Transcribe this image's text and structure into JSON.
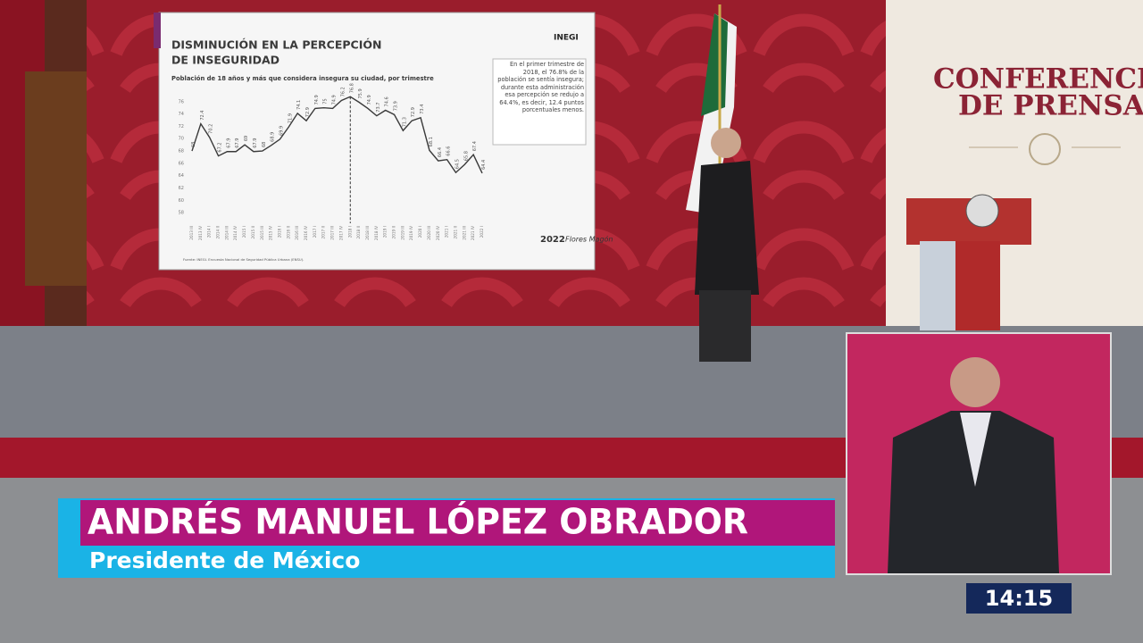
{
  "stage": {
    "backdrop_title": [
      "CONFERENCI",
      "DE PRENSA"
    ]
  },
  "screen": {
    "logo": "INEGI",
    "badge": [
      "2022",
      "Flores Magón"
    ],
    "source": "Fuente: INEGI. Encuesta Nacional de Seguridad Pública Urbana (ENSU).",
    "annotation": "En el primer trimestre de 2018, el 76.8% de la población se sentía insegura; durante esta administración esa percepción se redujo a 64.4%, es decir, 12.4 puntos porcentuales menos.",
    "chart_data": {
      "type": "line",
      "title": [
        "DISMINUCIÓN EN LA PERCEPCIÓN",
        "DE INSEGURIDAD"
      ],
      "subtitle": "Población de 18 años y más que considera insegura su ciudad, por trimestre",
      "categories": [
        "2013 III",
        "2013 IV",
        "2014 I",
        "2014 II",
        "2014 III",
        "2014 IV",
        "2015 I",
        "2015 II",
        "2015 III",
        "2015 IV",
        "2016 I",
        "2016 II",
        "2016 III",
        "2016 IV",
        "2017 I",
        "2017 II",
        "2017 III",
        "2017 IV",
        "2018 I",
        "2018 II",
        "2018 III",
        "2018 IV",
        "2019 I",
        "2019 II",
        "2019 III",
        "2019 IV",
        "2020 I",
        "2020 III",
        "2020 IV",
        "2021 I",
        "2021 II",
        "2021 III",
        "2021 IV",
        "2022 I"
      ],
      "values": [
        68.0,
        72.4,
        70.2,
        67.2,
        67.9,
        67.9,
        69.0,
        67.9,
        68.0,
        68.9,
        69.9,
        71.9,
        74.1,
        72.9,
        74.9,
        75.0,
        74.9,
        76.2,
        76.8,
        75.9,
        74.9,
        73.7,
        74.6,
        73.9,
        71.3,
        72.9,
        73.4,
        68.1,
        66.4,
        66.6,
        64.5,
        65.8,
        67.4,
        64.4
      ],
      "color": "#3a3a3a",
      "ylim": [
        57,
        78
      ],
      "yticks": [
        58,
        60,
        62,
        64,
        66,
        68,
        70,
        72,
        74,
        76
      ],
      "grid": false
    }
  },
  "lower_third": {
    "name": "ANDRÉS MANUEL LÓPEZ OBRADOR",
    "role": "Presidente de México"
  },
  "clock": "14:15"
}
